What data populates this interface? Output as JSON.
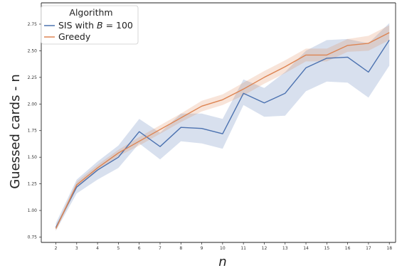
{
  "chart_data": {
    "type": "line",
    "title": "",
    "xlabel": "n",
    "ylabel": "Guessed cards - n",
    "x": [
      2,
      3,
      4,
      5,
      6,
      7,
      8,
      9,
      10,
      11,
      12,
      13,
      14,
      15,
      16,
      17,
      18
    ],
    "xlim": [
      1.3,
      18.3
    ],
    "ylim": [
      0.7,
      2.95
    ],
    "yticks": [
      0.75,
      1.0,
      1.25,
      1.5,
      1.75,
      2.0,
      2.25,
      2.5,
      2.75
    ],
    "ytick_labels": [
      "0.75",
      "1.00",
      "1.25",
      "1.50",
      "1.75",
      "2.00",
      "2.25",
      "2.50",
      "2.75"
    ],
    "xtick_labels": [
      "2",
      "3",
      "4",
      "5",
      "6",
      "7",
      "8",
      "9",
      "10",
      "11",
      "12",
      "13",
      "14",
      "15",
      "16",
      "17",
      "18"
    ],
    "grid": false,
    "legend": {
      "title": "Algorithm",
      "placement": "top-left"
    },
    "series": [
      {
        "name": "SIS with B = 100",
        "legend_prefix": "SIS with ",
        "legend_var": "B",
        "legend_suffix": " = 100",
        "color": "#4c72b0",
        "values": [
          0.84,
          1.22,
          1.38,
          1.5,
          1.74,
          1.6,
          1.78,
          1.77,
          1.72,
          2.1,
          2.01,
          2.1,
          2.34,
          2.43,
          2.44,
          2.3,
          2.6
        ],
        "lower": [
          0.81,
          1.16,
          1.29,
          1.4,
          1.63,
          1.48,
          1.65,
          1.63,
          1.58,
          1.99,
          1.88,
          1.89,
          2.12,
          2.21,
          2.2,
          2.06,
          2.36
        ],
        "upper": [
          0.88,
          1.29,
          1.46,
          1.61,
          1.86,
          1.73,
          1.91,
          1.91,
          1.86,
          2.23,
          2.15,
          2.3,
          2.5,
          2.6,
          2.61,
          2.57,
          2.76
        ]
      },
      {
        "name": "Greedy",
        "color": "#dd8452",
        "values": [
          0.83,
          1.24,
          1.4,
          1.54,
          1.65,
          1.76,
          1.87,
          1.98,
          2.04,
          2.14,
          2.25,
          2.35,
          2.46,
          2.46,
          2.55,
          2.57,
          2.67
        ],
        "lower": [
          0.81,
          1.21,
          1.37,
          1.51,
          1.61,
          1.72,
          1.83,
          1.93,
          1.99,
          2.08,
          2.19,
          2.29,
          2.4,
          2.4,
          2.49,
          2.5,
          2.6
        ],
        "upper": [
          0.85,
          1.27,
          1.43,
          1.57,
          1.69,
          1.8,
          1.91,
          2.03,
          2.09,
          2.2,
          2.31,
          2.41,
          2.52,
          2.52,
          2.61,
          2.64,
          2.74
        ]
      }
    ]
  },
  "colors": {
    "axis": "#222222",
    "background": "#ffffff",
    "legend_border": "#cccccc"
  }
}
